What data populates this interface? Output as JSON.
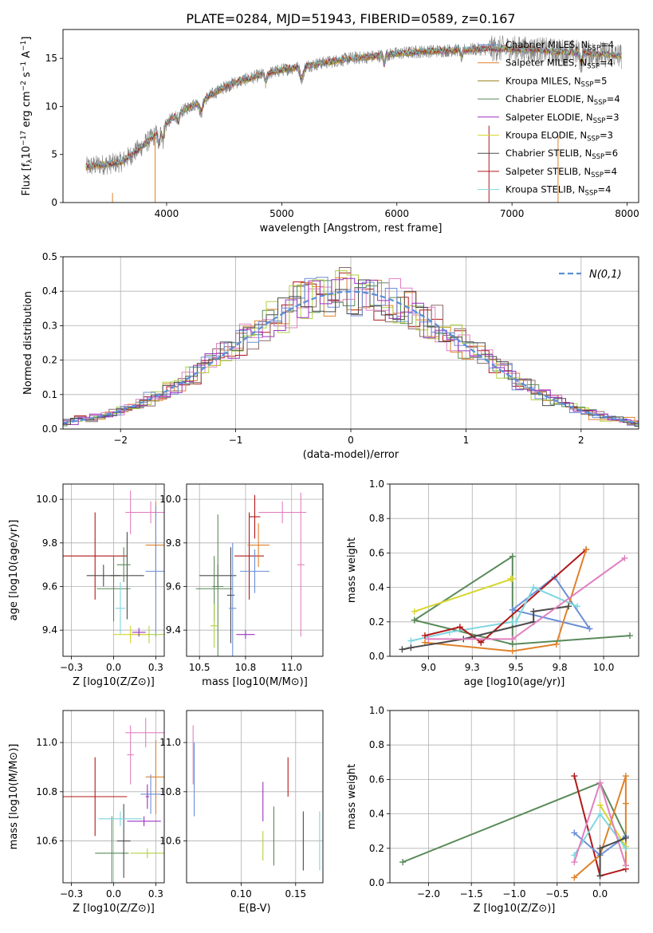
{
  "figure": {
    "title": "PLATE=0284, MJD=51943, FIBERID=0589, z=0.167"
  },
  "model_colors": [
    "#6c8fd6",
    "#e0812a",
    "#9a7f1a",
    "#5a8a5a",
    "#9b30c0",
    "#d6d630",
    "#4a4a4a",
    "#b01818",
    "#7fd6e0",
    "#e080c0",
    "#8a6a6a",
    "#b0d040"
  ],
  "chart_data": [
    {
      "id": "spectrum",
      "type": "line",
      "xlabel": "wavelength [Angstrom, rest frame]",
      "ylabel": "Flux [f_λ10^-17 erg cm^-2 s^-1 A^-1]",
      "xlim": [
        3100,
        8100
      ],
      "ylim": [
        0,
        18
      ],
      "xticks": [
        4000,
        5000,
        6000,
        7000,
        8000
      ],
      "yticks": [
        0,
        5,
        10,
        15
      ],
      "grid": false,
      "legend_position": "right",
      "legend": [
        "Chabrier MILES, N_SSP=4",
        "Salpeter MILES, N_SSP=4",
        "Kroupa MILES, N_SSP=5",
        "Chabrier ELODIE, N_SSP=4",
        "Salpeter ELODIE, N_SSP=3",
        "Kroupa ELODIE, N_SSP=3",
        "Chabrier STELIB, N_SSP=6",
        "Salpeter STELIB, N_SSP=4",
        "Kroupa STELIB, N_SSP=4"
      ],
      "continuum": {
        "x": [
          3300,
          3400,
          3500,
          3600,
          3700,
          3800,
          3900,
          4000,
          4100,
          4200,
          4300,
          4400,
          4500,
          4600,
          4800,
          5000,
          5200,
          5400,
          5600,
          5800,
          6000,
          6200,
          6400,
          6600,
          6800,
          7000,
          7200,
          7400,
          7600,
          7800,
          8000
        ],
        "y": [
          3.7,
          3.9,
          4.0,
          4.2,
          5.0,
          6.0,
          7.0,
          8.3,
          9.2,
          10.0,
          10.5,
          11.3,
          12.0,
          12.5,
          13.2,
          13.8,
          14.2,
          14.6,
          15.0,
          15.2,
          15.5,
          15.7,
          15.8,
          15.9,
          16.0,
          16.0,
          15.9,
          15.7,
          15.6,
          15.4,
          15.2
        ]
      }
    },
    {
      "id": "residual_hist",
      "type": "step",
      "xlabel": "(data-model)/error",
      "ylabel": "Normed distribution",
      "xlim": [
        -2.5,
        2.5
      ],
      "ylim": [
        0,
        0.5
      ],
      "xticks": [
        -2,
        -1,
        0,
        1,
        2
      ],
      "yticks": [
        0.0,
        0.1,
        0.2,
        0.3,
        0.4,
        0.5
      ],
      "grid": true,
      "legend_position": "top-right",
      "legend": [
        "N(0,1)"
      ],
      "reference_curve": {
        "type": "gaussian",
        "mean": 0,
        "sigma": 1,
        "color": "#5a8fd8"
      }
    },
    {
      "id": "age_vs_Z",
      "type": "errorbar",
      "xlabel": "Z [log10(Z/Z⊙)]",
      "ylabel": "age [log10(age/yr)]",
      "xlim": [
        -0.3,
        0.3
      ],
      "ylim": [
        9.28,
        10.07
      ],
      "xticks": [
        -0.25,
        0.0,
        0.25
      ],
      "yticks": [
        9.4,
        9.6,
        9.8,
        10.0
      ],
      "grid": true,
      "points": [
        {
          "x": -0.11,
          "y": 9.74,
          "xerr": 0.19,
          "yerr": 0.2,
          "c": 7
        },
        {
          "x": -0.06,
          "y": 9.65,
          "xerr": 0.1,
          "yerr": 0.05,
          "c": 6
        },
        {
          "x": 0.0,
          "y": 9.59,
          "xerr": 0.1,
          "yerr": 0.15,
          "c": 3
        },
        {
          "x": 0.08,
          "y": 9.65,
          "xerr": 0.1,
          "yerr": 0.2,
          "c": 6
        },
        {
          "x": 0.06,
          "y": 9.7,
          "xerr": 0.04,
          "yerr": 0.08,
          "c": 3
        },
        {
          "x": 0.04,
          "y": 9.5,
          "xerr": 0.03,
          "yerr": 0.12,
          "c": 8
        },
        {
          "x": 0.1,
          "y": 9.94,
          "xerr": 0.03,
          "yerr": 0.1,
          "c": 9
        },
        {
          "x": 0.22,
          "y": 9.94,
          "xerr": 0.12,
          "yerr": 0.05,
          "c": 9
        },
        {
          "x": 0.25,
          "y": 9.79,
          "xerr": 0.06,
          "yerr": 0.2,
          "c": 1
        },
        {
          "x": 0.25,
          "y": 9.67,
          "xerr": 0.06,
          "yerr": 0.3,
          "c": 0
        },
        {
          "x": 0.21,
          "y": 9.38,
          "xerr": 0.12,
          "yerr": 0.04,
          "c": 11
        },
        {
          "x": 0.1,
          "y": 9.38,
          "xerr": 0.1,
          "yerr": 0.04,
          "c": 5
        },
        {
          "x": 0.15,
          "y": 9.39,
          "xerr": 0.04,
          "yerr": 0.02,
          "c": 4
        }
      ]
    },
    {
      "id": "age_vs_mass",
      "type": "errorbar",
      "xlabel": "mass [log10(M/M⊙)]",
      "ylabel": "",
      "xlim": [
        10.43,
        11.17
      ],
      "ylim": [
        9.28,
        10.07
      ],
      "xticks": [
        10.5,
        10.75,
        11.0
      ],
      "yticks": [
        9.4,
        9.6,
        9.8,
        10.0
      ],
      "grid": true,
      "points": [
        {
          "x": 10.6,
          "y": 9.65,
          "xerr": 0.1,
          "yerr": 0.05,
          "c": 6
        },
        {
          "x": 10.58,
          "y": 9.59,
          "xerr": 0.1,
          "yerr": 0.15,
          "c": 3
        },
        {
          "x": 10.6,
          "y": 9.6,
          "xerr": 0.03,
          "yerr": 0.33,
          "c": 3
        },
        {
          "x": 10.67,
          "y": 9.56,
          "xerr": 0.02,
          "yerr": 0.22,
          "c": 6
        },
        {
          "x": 10.68,
          "y": 9.5,
          "xerr": 0.02,
          "yerr": 0.3,
          "c": 0
        },
        {
          "x": 10.77,
          "y": 9.74,
          "xerr": 0.08,
          "yerr": 0.2,
          "c": 7
        },
        {
          "x": 10.82,
          "y": 9.79,
          "xerr": 0.06,
          "yerr": 0.1,
          "c": 1
        },
        {
          "x": 10.8,
          "y": 9.67,
          "xerr": 0.08,
          "yerr": 0.1,
          "c": 0
        },
        {
          "x": 10.8,
          "y": 9.92,
          "xerr": 0.03,
          "yerr": 0.1,
          "c": 7
        },
        {
          "x": 10.95,
          "y": 9.94,
          "xerr": 0.13,
          "yerr": 0.05,
          "c": 9
        },
        {
          "x": 10.75,
          "y": 9.38,
          "xerr": 0.05,
          "yerr": 0.02,
          "c": 4
        },
        {
          "x": 10.58,
          "y": 9.42,
          "xerr": 0.02,
          "yerr": 0.1,
          "c": 11
        },
        {
          "x": 11.05,
          "y": 9.7,
          "xerr": 0.02,
          "yerr": 0.33,
          "c": 9
        }
      ]
    },
    {
      "id": "weight_vs_age",
      "type": "line",
      "xlabel": "age [log10(age/yr)]",
      "ylabel": "mass weight",
      "xlim": [
        8.78,
        10.2
      ],
      "ylim": [
        0.0,
        1.0
      ],
      "xticks": [
        9.0,
        9.25,
        9.5,
        9.75,
        10.0
      ],
      "yticks": [
        0.0,
        0.2,
        0.4,
        0.6,
        0.8,
        1.0
      ],
      "grid": true,
      "series": [
        {
          "x": [
            8.92,
            9.48,
            9.48,
            8.92
          ],
          "y": [
            0.21,
            0.58,
            0.07,
            0.21
          ],
          "c": 3
        },
        {
          "x": [
            8.92,
            9.48,
            9.47
          ],
          "y": [
            0.26,
            0.45,
            0.45
          ],
          "c": 5
        },
        {
          "x": [
            8.9,
            9.12,
            9.48
          ],
          "y": [
            0.09,
            0.14,
            0.2
          ],
          "c": 8
        },
        {
          "x": [
            9.48,
            9.72,
            9.92,
            9.48
          ],
          "y": [
            0.27,
            0.46,
            0.16,
            0.27
          ],
          "c": 0
        },
        {
          "x": [
            8.98,
            9.18,
            9.3,
            9.9
          ],
          "y": [
            0.12,
            0.17,
            0.08,
            0.62
          ],
          "c": 7
        },
        {
          "x": [
            8.98,
            9.48,
            9.73,
            9.9
          ],
          "y": [
            0.08,
            0.03,
            0.07,
            0.62
          ],
          "c": 1
        },
        {
          "x": [
            9.5,
            9.6,
            9.85
          ],
          "y": [
            0.2,
            0.4,
            0.29
          ],
          "c": 8
        },
        {
          "x": [
            9.6,
            9.6,
            9.8
          ],
          "y": [
            0.2,
            0.26,
            0.29
          ],
          "c": 6
        },
        {
          "x": [
            8.85,
            8.9,
            9.2,
            9.6
          ],
          "y": [
            0.04,
            0.05,
            0.1,
            0.2
          ],
          "c": 6
        },
        {
          "x": [
            9.0,
            9.48,
            10.12
          ],
          "y": [
            0.1,
            0.1,
            0.57
          ],
          "c": 9
        },
        {
          "x": [
            9.48,
            10.15
          ],
          "y": [
            0.07,
            0.12
          ],
          "c": 3
        }
      ]
    },
    {
      "id": "mass_vs_Z",
      "type": "errorbar",
      "xlabel": "Z [log10(Z/Z⊙)]",
      "ylabel": "mass [log10(M/M⊙)]",
      "xlim": [
        -0.3,
        0.3
      ],
      "ylim": [
        10.43,
        11.13
      ],
      "xticks": [
        -0.25,
        0.0,
        0.25
      ],
      "yticks": [
        10.6,
        10.8,
        11.0
      ],
      "grid": true,
      "points": [
        {
          "x": -0.11,
          "y": 10.78,
          "xerr": 0.19,
          "yerr": 0.16,
          "c": 7
        },
        {
          "x": -0.01,
          "y": 10.55,
          "xerr": 0.1,
          "yerr": 0.15,
          "c": 3
        },
        {
          "x": 0.06,
          "y": 10.6,
          "xerr": 0.04,
          "yerr": 0.15,
          "c": 6
        },
        {
          "x": 0.04,
          "y": 10.69,
          "xerr": 0.13,
          "yerr": 0.03,
          "c": 8
        },
        {
          "x": 0.19,
          "y": 11.04,
          "xerr": 0.12,
          "yerr": 0.06,
          "c": 9
        },
        {
          "x": 0.25,
          "y": 10.86,
          "xerr": 0.06,
          "yerr": 0.15,
          "c": 1
        },
        {
          "x": 0.22,
          "y": 10.79,
          "xerr": 0.06,
          "yerr": 0.08,
          "c": 0
        },
        {
          "x": 0.2,
          "y": 10.55,
          "xerr": 0.1,
          "yerr": 0.02,
          "c": 11
        },
        {
          "x": 0.18,
          "y": 10.68,
          "xerr": 0.1,
          "yerr": 0.02,
          "c": 4
        },
        {
          "x": 0.2,
          "y": 10.78,
          "xerr": 0.01,
          "yerr": 0.05,
          "c": 4
        },
        {
          "x": 0.1,
          "y": 10.95,
          "xerr": 0.02,
          "yerr": 0.12,
          "c": 9
        }
      ]
    },
    {
      "id": "mass_vs_ebv",
      "type": "errorbar",
      "xlabel": "E(B-V)",
      "ylabel": "",
      "xlim": [
        0.05,
        0.175
      ],
      "ylim": [
        10.43,
        11.13
      ],
      "xticks": [
        0.1,
        0.15
      ],
      "yticks": [
        10.6,
        10.8,
        11.0
      ],
      "grid": true,
      "points": [
        {
          "x": 0.057,
          "y": 10.85,
          "xerr": 0,
          "yerr": 0.15,
          "c": 0
        },
        {
          "x": 0.056,
          "y": 10.95,
          "xerr": 0,
          "yerr": 0.12,
          "c": 9
        },
        {
          "x": 0.12,
          "y": 10.76,
          "xerr": 0,
          "yerr": 0.08,
          "c": 4
        },
        {
          "x": 0.12,
          "y": 10.58,
          "xerr": 0,
          "yerr": 0.06,
          "c": 11
        },
        {
          "x": 0.143,
          "y": 10.86,
          "xerr": 0,
          "yerr": 0.08,
          "c": 7
        },
        {
          "x": 0.13,
          "y": 10.62,
          "xerr": 0,
          "yerr": 0.12,
          "c": 3
        },
        {
          "x": 0.157,
          "y": 10.6,
          "xerr": 0,
          "yerr": 0.12,
          "c": 6
        },
        {
          "x": 0.172,
          "y": 10.6,
          "xerr": 0,
          "yerr": 0.12,
          "c": 8
        }
      ]
    },
    {
      "id": "weight_vs_Z",
      "type": "line",
      "xlabel": "Z [log10(Z/Z⊙)]",
      "ylabel": "mass weight",
      "xlim": [
        -2.45,
        0.45
      ],
      "ylim": [
        0.0,
        1.0
      ],
      "xticks": [
        -2.0,
        -1.5,
        -1.0,
        -0.5,
        0.0
      ],
      "yticks": [
        0.0,
        0.2,
        0.4,
        0.6,
        0.8,
        1.0
      ],
      "grid": true,
      "series": [
        {
          "x": [
            -2.3,
            0.0,
            0.3
          ],
          "y": [
            0.12,
            0.58,
            0.27
          ],
          "c": 3
        },
        {
          "x": [
            -0.3,
            0.0,
            0.3
          ],
          "y": [
            0.62,
            0.04,
            0.08
          ],
          "c": 7
        },
        {
          "x": [
            -0.3,
            0.0,
            0.3,
            0.3,
            0.3
          ],
          "y": [
            0.03,
            0.16,
            0.62,
            0.46,
            0.1
          ],
          "c": 1
        },
        {
          "x": [
            -0.3,
            0.0,
            0.3
          ],
          "y": [
            0.29,
            0.16,
            0.27
          ],
          "c": 0
        },
        {
          "x": [
            0.0,
            0.0,
            0.3
          ],
          "y": [
            0.45,
            0.45,
            0.21
          ],
          "c": 5
        },
        {
          "x": [
            -0.3,
            0.0,
            0.3
          ],
          "y": [
            0.16,
            0.4,
            0.2
          ],
          "c": 8
        },
        {
          "x": [
            -0.3,
            0.0,
            0.3
          ],
          "y": [
            0.12,
            0.58,
            0.1
          ],
          "c": 9
        },
        {
          "x": [
            0.0,
            0.0,
            0.3
          ],
          "y": [
            0.04,
            0.2,
            0.26
          ],
          "c": 6
        }
      ]
    }
  ]
}
